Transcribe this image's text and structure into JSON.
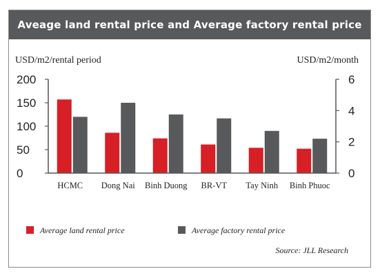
{
  "title": "Aveage land rental price and Average factory rental price",
  "source": "Source: JLL Research",
  "colors": {
    "land": "#d71f26",
    "factory": "#58595b",
    "axis": "#555555"
  },
  "chart_data": {
    "type": "bar",
    "title": "Aveage land rental price and Average factory rental price",
    "categories": [
      "HCMC",
      "Dong Nai",
      "Binh Duong",
      "BR-VT",
      "Tay Ninh",
      "Binh Phuoc"
    ],
    "series": [
      {
        "name": "Average land rental price",
        "axis": "left",
        "color": "#d71f26",
        "values": [
          157,
          86,
          74,
          61,
          54,
          52
        ]
      },
      {
        "name": "Average factory rental price",
        "axis": "right",
        "color": "#58595b",
        "values": [
          3.6,
          4.5,
          3.75,
          3.5,
          2.7,
          2.2
        ]
      }
    ],
    "ylabel_left": "USD/m2/rental period",
    "ylabel_right": "USD/m2/month",
    "ylim_left": [
      0,
      200
    ],
    "ylim_right": [
      0,
      6
    ],
    "yticks_left": [
      0,
      50,
      100,
      150,
      200
    ],
    "yticks_right": [
      0,
      2,
      4,
      6
    ],
    "grid": false,
    "legend_position": "bottom-left"
  }
}
